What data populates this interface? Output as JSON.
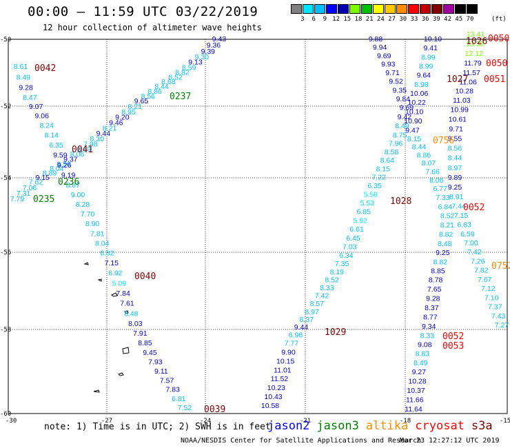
{
  "header": {
    "title": "00:00 – 11:59 UTC 03/22/2019",
    "subtitle": "12 hour collection of altimeter wave heights"
  },
  "legend": {
    "colors": [
      "#808080",
      "#00e5ff",
      "#00bfff",
      "#0000ff",
      "#0000b0",
      "#7cfc00",
      "#00c000",
      "#ffff00",
      "#ffc800",
      "#ff8c00",
      "#ff0000",
      "#c00000",
      "#800000",
      "#a000a0",
      "#000000",
      "#000000"
    ],
    "labels": [
      "3",
      "6",
      "9",
      "12",
      "15",
      "18",
      "21",
      "24",
      "27",
      "30",
      "33",
      "36",
      "39",
      "42",
      "45",
      "70"
    ],
    "unit": "(ft)"
  },
  "map": {
    "lon_ticks": [
      "-30",
      "-27",
      "-24",
      "-21",
      "-18",
      "-15"
    ],
    "lat_ticks": [
      "-50",
      "-52",
      "-54",
      "-56",
      "-58",
      "-60"
    ]
  },
  "tracks": [
    {
      "name": "track-1",
      "points": [
        [
          "9.43",
          "#0000cd"
        ],
        [
          "9.36",
          "#0000cd"
        ],
        [
          "9.39",
          "#0000cd"
        ],
        [
          "9.30",
          "#00bfff"
        ],
        [
          "9.13",
          "#0000cd"
        ],
        [
          "8.59",
          "#00bfff"
        ],
        [
          "8.82",
          "#00bfff"
        ],
        [
          "8.52",
          "#00bfff"
        ],
        [
          "8.68",
          "#00bfff"
        ],
        [
          "8.44",
          "#00bfff"
        ],
        [
          "8.86",
          "#00bfff"
        ],
        [
          "8.56",
          "#00bfff"
        ],
        [
          "9.65",
          "#0000cd"
        ],
        [
          "8.21",
          "#00bfff"
        ],
        [
          "8.95",
          "#00bfff"
        ],
        [
          "9.20",
          "#0000cd"
        ],
        [
          "9.46",
          "#0000cd"
        ],
        [
          "8.21",
          "#00bfff"
        ],
        [
          "9.44",
          "#0000cd"
        ],
        [
          "8.30",
          "#00bfff"
        ],
        [
          "7.98",
          "#00bfff"
        ],
        [
          "8.69",
          "#00bfff"
        ],
        [
          "8.06",
          "#00bfff"
        ],
        [
          "9.37",
          "#0000cd"
        ],
        [
          "8.56",
          "#00bfff"
        ],
        [
          "8.04",
          "#00bfff"
        ],
        [
          "8.89",
          "#00bfff"
        ],
        [
          "9.15",
          "#0000cd"
        ],
        [
          "7.62",
          "#00bfff"
        ],
        [
          "7.06",
          "#00bfff"
        ],
        [
          "7.31",
          "#00bfff"
        ],
        [
          "7.79",
          "#00bfff"
        ]
      ]
    },
    {
      "name": "track-2",
      "points": [
        [
          "8.61",
          "#00bfff"
        ],
        [
          "8.49",
          "#00bfff"
        ],
        [
          "9.28",
          "#0000cd"
        ],
        [
          "8.47",
          "#00bfff"
        ],
        [
          "9.07",
          "#0000cd"
        ],
        [
          "9.06",
          "#0000cd"
        ],
        [
          "8.24",
          "#00bfff"
        ],
        [
          "8.14",
          "#00bfff"
        ],
        [
          "6.35",
          "#00bfff"
        ],
        [
          "9.59",
          "#0000cd"
        ],
        [
          "9.26",
          "#0000cd"
        ],
        [
          "9.19",
          "#0000cd"
        ],
        [
          "8.87",
          "#00bfff"
        ],
        [
          "9.00",
          "#00bfff"
        ],
        [
          "8.28",
          "#00bfff"
        ],
        [
          "7.70",
          "#00bfff"
        ],
        [
          "8.90",
          "#00bfff"
        ],
        [
          "7.81",
          "#00bfff"
        ],
        [
          "8.04",
          "#00bfff"
        ],
        [
          "6.82",
          "#00bfff"
        ],
        [
          "7.15",
          "#0000cd"
        ],
        [
          "6.92",
          "#00bfff"
        ],
        [
          "5.09",
          "#00e5ff"
        ],
        [
          "7.84",
          "#0000cd"
        ],
        [
          "7.61",
          "#0000cd"
        ],
        [
          "8.48",
          "#00bfff"
        ],
        [
          "8.03",
          "#0000cd"
        ],
        [
          "7.91",
          "#0000cd"
        ],
        [
          "8.85",
          "#0000cd"
        ],
        [
          "9.45",
          "#0000cd"
        ],
        [
          "7.93",
          "#0000cd"
        ],
        [
          "9.11",
          "#0000cd"
        ],
        [
          "7.57",
          "#0000cd"
        ],
        [
          "7.83",
          "#0000cd"
        ],
        [
          "6.81",
          "#00bfff"
        ],
        [
          "7.52",
          "#00bfff"
        ]
      ]
    },
    {
      "name": "track-3",
      "points": [
        [
          "10.58",
          "#0000cd"
        ],
        [
          "10.43",
          "#0000cd"
        ],
        [
          "10.23",
          "#0000cd"
        ],
        [
          "11.52",
          "#0000cd"
        ],
        [
          "11.01",
          "#0000cd"
        ],
        [
          "10.15",
          "#0000cd"
        ],
        [
          "9.90",
          "#0000cd"
        ],
        [
          "7.77",
          "#00bfff"
        ],
        [
          "6.96",
          "#00bfff"
        ],
        [
          "9.44",
          "#0000cd"
        ],
        [
          "8.37",
          "#00bfff"
        ],
        [
          "8.97",
          "#00bfff"
        ],
        [
          "8.57",
          "#00bfff"
        ],
        [
          "7.42",
          "#00bfff"
        ],
        [
          "8.33",
          "#00bfff"
        ],
        [
          "8.52",
          "#00bfff"
        ],
        [
          "8.19",
          "#00bfff"
        ],
        [
          "7.35",
          "#00bfff"
        ],
        [
          "6.34",
          "#00bfff"
        ],
        [
          "7.03",
          "#00bfff"
        ],
        [
          "6.45",
          "#00bfff"
        ],
        [
          "6.61",
          "#00bfff"
        ],
        [
          "5.92",
          "#00e5ff"
        ],
        [
          "6.85",
          "#00bfff"
        ],
        [
          "5.53",
          "#00e5ff"
        ],
        [
          "5.58",
          "#00e5ff"
        ],
        [
          "6.35",
          "#00bfff"
        ],
        [
          "7.22",
          "#00bfff"
        ],
        [
          "8.15",
          "#00bfff"
        ],
        [
          "8.64",
          "#00bfff"
        ],
        [
          "8.58",
          "#00bfff"
        ],
        [
          "7.96",
          "#00bfff"
        ],
        [
          "8.75",
          "#00bfff"
        ],
        [
          "8.49",
          "#00bfff"
        ],
        [
          "9.42",
          "#0000cd"
        ],
        [
          "9.69",
          "#0000cd"
        ],
        [
          "9.84",
          "#0000cd"
        ],
        [
          "9.35",
          "#0000cd"
        ],
        [
          "9.52",
          "#0000cd"
        ],
        [
          "9.71",
          "#0000cd"
        ],
        [
          "9.93",
          "#0000cd"
        ],
        [
          "9.69",
          "#0000cd"
        ],
        [
          "9.94",
          "#0000cd"
        ],
        [
          "9.88",
          "#0000cd"
        ]
      ]
    },
    {
      "name": "track-4",
      "points": [
        [
          "10.10",
          "#0000cd"
        ],
        [
          "9.41",
          "#0000cd"
        ],
        [
          "8.99",
          "#00bfff"
        ],
        [
          "8.99",
          "#00bfff"
        ],
        [
          "9.64",
          "#0000cd"
        ],
        [
          "8.98",
          "#00bfff"
        ],
        [
          "10.06",
          "#0000cd"
        ],
        [
          "10.22",
          "#0000cd"
        ],
        [
          "10.10",
          "#0000cd"
        ],
        [
          "10.90",
          "#0000cd"
        ],
        [
          "9.47",
          "#0000cd"
        ],
        [
          "8.15",
          "#00bfff"
        ],
        [
          "8.44",
          "#00bfff"
        ],
        [
          "8.86",
          "#00bfff"
        ],
        [
          "8.07",
          "#00bfff"
        ],
        [
          "7.66",
          "#00bfff"
        ],
        [
          "8.06",
          "#00bfff"
        ],
        [
          "6.77",
          "#00bfff"
        ],
        [
          "7.33",
          "#00bfff"
        ],
        [
          "6.84",
          "#00bfff"
        ],
        [
          "8.52",
          "#00bfff"
        ],
        [
          "8.21",
          "#00bfff"
        ],
        [
          "8.82",
          "#00bfff"
        ],
        [
          "8.48",
          "#00bfff"
        ],
        [
          "9.25",
          "#0000cd"
        ],
        [
          "8.82",
          "#00bfff"
        ],
        [
          "8.85",
          "#0000cd"
        ],
        [
          "8.78",
          "#0000cd"
        ],
        [
          "7.65",
          "#0000cd"
        ],
        [
          "9.28",
          "#0000cd"
        ],
        [
          "8.37",
          "#0000cd"
        ],
        [
          "8.77",
          "#0000cd"
        ],
        [
          "9.34",
          "#0000cd"
        ],
        [
          "8.33",
          "#00bfff"
        ],
        [
          "9.08",
          "#0000cd"
        ],
        [
          "8.83",
          "#00bfff"
        ],
        [
          "8.49",
          "#00bfff"
        ],
        [
          "9.27",
          "#0000cd"
        ],
        [
          "10.28",
          "#0000cd"
        ],
        [
          "10.37",
          "#0000cd"
        ],
        [
          "11.66",
          "#0000cd"
        ],
        [
          "11.64",
          "#0000cd"
        ]
      ]
    },
    {
      "name": "track-5",
      "points": [
        [
          "13.41",
          "#7cfc00"
        ],
        [
          "13.38",
          "#7cfc00"
        ],
        [
          "12.12",
          "#7cfc00"
        ],
        [
          "11.79",
          "#0000cd"
        ],
        [
          "11.57",
          "#0000cd"
        ],
        [
          "11.06",
          "#0000cd"
        ],
        [
          "10.28",
          "#0000cd"
        ],
        [
          "11.03",
          "#0000cd"
        ],
        [
          "10.99",
          "#0000cd"
        ],
        [
          "10.61",
          "#0000cd"
        ],
        [
          "9.71",
          "#0000cd"
        ],
        [
          "9.55",
          "#0000cd"
        ],
        [
          "8.56",
          "#00bfff"
        ],
        [
          "8.44",
          "#00bfff"
        ],
        [
          "8.97",
          "#00bfff"
        ],
        [
          "9.89",
          "#0000cd"
        ],
        [
          "9.25",
          "#0000cd"
        ],
        [
          "8.91",
          "#00bfff"
        ],
        [
          "7.44",
          "#00bfff"
        ],
        [
          "7.15",
          "#00bfff"
        ],
        [
          "6.63",
          "#00bfff"
        ],
        [
          "6.59",
          "#00bfff"
        ],
        [
          "7.00",
          "#00bfff"
        ],
        [
          "7.42",
          "#00bfff"
        ],
        [
          "7.26",
          "#00bfff"
        ],
        [
          "7.82",
          "#00bfff"
        ],
        [
          "7.67",
          "#00bfff"
        ],
        [
          "7.12",
          "#00bfff"
        ],
        [
          "7.10",
          "#00bfff"
        ],
        [
          "7.37",
          "#00bfff"
        ],
        [
          "7.43",
          "#00bfff"
        ],
        [
          "7.27",
          "#00bfff"
        ]
      ]
    }
  ],
  "times": [
    {
      "label": "0042",
      "color": "#800000"
    },
    {
      "label": "0237",
      "color": "#008000"
    },
    {
      "label": "0041",
      "color": "#800000"
    },
    {
      "label": "0236",
      "color": "#008000"
    },
    {
      "label": "0235",
      "color": "#008000"
    },
    {
      "label": "0040",
      "color": "#800000"
    },
    {
      "label": "0039",
      "color": "#800000"
    },
    {
      "label": "1029",
      "color": "#800000"
    },
    {
      "label": "1028",
      "color": "#800000"
    },
    {
      "label": "1026",
      "color": "#800000"
    },
    {
      "label": "1027",
      "color": "#800000"
    },
    {
      "label": "0756",
      "color": "#ff8c00"
    },
    {
      "label": "0050",
      "color": "#ff0000"
    },
    {
      "label": "0050",
      "color": "#ff0000"
    },
    {
      "label": "0051",
      "color": "#ff0000"
    },
    {
      "label": "0052",
      "color": "#ff0000"
    },
    {
      "label": "0752",
      "color": "#ff8c00"
    },
    {
      "label": "0052",
      "color": "#ff0000"
    },
    {
      "label": "0053",
      "color": "#ff0000"
    }
  ],
  "satellites": [
    {
      "name": "jason2",
      "color": "#0000ff"
    },
    {
      "name": "jason3",
      "color": "#008000"
    },
    {
      "name": "altika",
      "color": "#ff8c00"
    },
    {
      "name": "cryosat",
      "color": "#ff0000"
    },
    {
      "name": "s3a",
      "color": "#800000"
    }
  ],
  "footer": {
    "note": "note: 1) Time is in UTC; 2) SWH is in feet",
    "credit": "NOAA/NESDIS Center for Satellite Applications and Research",
    "timestamp": "Mar 23 12:27:12 UTC 2019"
  }
}
